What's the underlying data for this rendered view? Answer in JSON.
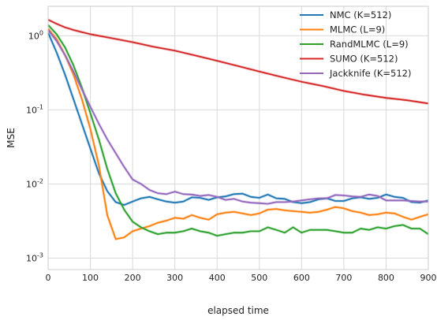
{
  "chart_data": {
    "type": "line",
    "title": "",
    "xlabel": "elapsed time",
    "ylabel": "MSE",
    "xlim": [
      0,
      900
    ],
    "ylim": [
      0.0007,
      2.5
    ],
    "yscale": "log",
    "grid": true,
    "legend_position": "top-right",
    "x_ticks": [
      0,
      100,
      200,
      300,
      400,
      500,
      600,
      700,
      800,
      900
    ],
    "x_tick_labels": [
      "0",
      "100",
      "200",
      "300",
      "400",
      "500",
      "600",
      "700",
      "800",
      "900"
    ],
    "y_ticks": [
      0.001,
      0.01,
      0.1,
      1
    ],
    "y_tick_labels": [
      {
        "base": "10",
        "exp": "-3"
      },
      {
        "base": "10",
        "exp": "-2"
      },
      {
        "base": "10",
        "exp": "-1"
      },
      {
        "base": "10",
        "exp": "0"
      }
    ],
    "series": [
      {
        "name": "NMC (K=512)",
        "color": "#1f77b4",
        "points": [
          [
            0,
            1.1
          ],
          [
            20,
            0.6
          ],
          [
            40,
            0.3
          ],
          [
            60,
            0.14
          ],
          [
            80,
            0.065
          ],
          [
            100,
            0.03
          ],
          [
            120,
            0.014
          ],
          [
            140,
            0.008
          ],
          [
            160,
            0.0057
          ],
          [
            180,
            0.0052
          ],
          [
            200,
            0.0058
          ],
          [
            220,
            0.0064
          ],
          [
            240,
            0.0067
          ],
          [
            260,
            0.0062
          ],
          [
            280,
            0.0058
          ],
          [
            300,
            0.0056
          ],
          [
            320,
            0.0058
          ],
          [
            340,
            0.0066
          ],
          [
            360,
            0.0065
          ],
          [
            380,
            0.0061
          ],
          [
            400,
            0.0066
          ],
          [
            420,
            0.0068
          ],
          [
            440,
            0.0073
          ],
          [
            460,
            0.0074
          ],
          [
            480,
            0.0067
          ],
          [
            500,
            0.0065
          ],
          [
            520,
            0.0072
          ],
          [
            540,
            0.0064
          ],
          [
            560,
            0.0063
          ],
          [
            580,
            0.0057
          ],
          [
            600,
            0.0055
          ],
          [
            620,
            0.0057
          ],
          [
            640,
            0.0062
          ],
          [
            660,
            0.0064
          ],
          [
            680,
            0.0059
          ],
          [
            700,
            0.0059
          ],
          [
            720,
            0.0064
          ],
          [
            740,
            0.0066
          ],
          [
            760,
            0.0063
          ],
          [
            780,
            0.0065
          ],
          [
            800,
            0.0072
          ],
          [
            820,
            0.0067
          ],
          [
            840,
            0.0065
          ],
          [
            860,
            0.0057
          ],
          [
            880,
            0.0056
          ],
          [
            900,
            0.006
          ]
        ]
      },
      {
        "name": "MLMC (L=9)",
        "color": "#ff7f0e",
        "points": [
          [
            0,
            1.25
          ],
          [
            20,
            0.9
          ],
          [
            40,
            0.55
          ],
          [
            60,
            0.3
          ],
          [
            80,
            0.14
          ],
          [
            100,
            0.055
          ],
          [
            120,
            0.018
          ],
          [
            140,
            0.0038
          ],
          [
            160,
            0.0018
          ],
          [
            180,
            0.0019
          ],
          [
            200,
            0.0023
          ],
          [
            220,
            0.0025
          ],
          [
            240,
            0.0027
          ],
          [
            260,
            0.003
          ],
          [
            280,
            0.0032
          ],
          [
            300,
            0.0035
          ],
          [
            320,
            0.0034
          ],
          [
            340,
            0.0038
          ],
          [
            360,
            0.0035
          ],
          [
            380,
            0.0033
          ],
          [
            400,
            0.0039
          ],
          [
            420,
            0.0041
          ],
          [
            440,
            0.0042
          ],
          [
            460,
            0.004
          ],
          [
            480,
            0.0038
          ],
          [
            500,
            0.004
          ],
          [
            520,
            0.0045
          ],
          [
            540,
            0.0046
          ],
          [
            560,
            0.0044
          ],
          [
            580,
            0.0043
          ],
          [
            600,
            0.0042
          ],
          [
            620,
            0.0041
          ],
          [
            640,
            0.0042
          ],
          [
            660,
            0.0045
          ],
          [
            680,
            0.0049
          ],
          [
            700,
            0.0047
          ],
          [
            720,
            0.0043
          ],
          [
            740,
            0.0041
          ],
          [
            760,
            0.0038
          ],
          [
            780,
            0.0039
          ],
          [
            800,
            0.0041
          ],
          [
            820,
            0.004
          ],
          [
            840,
            0.0036
          ],
          [
            860,
            0.0033
          ],
          [
            880,
            0.0036
          ],
          [
            900,
            0.0039
          ]
        ]
      },
      {
        "name": "RandMLMC (L=9)",
        "color": "#2ca02c",
        "points": [
          [
            0,
            1.4
          ],
          [
            20,
            1.05
          ],
          [
            40,
            0.7
          ],
          [
            60,
            0.4
          ],
          [
            80,
            0.2
          ],
          [
            100,
            0.09
          ],
          [
            120,
            0.04
          ],
          [
            140,
            0.016
          ],
          [
            160,
            0.0075
          ],
          [
            180,
            0.0045
          ],
          [
            200,
            0.0031
          ],
          [
            220,
            0.0026
          ],
          [
            240,
            0.0023
          ],
          [
            260,
            0.0021
          ],
          [
            280,
            0.0022
          ],
          [
            300,
            0.0022
          ],
          [
            320,
            0.0023
          ],
          [
            340,
            0.0025
          ],
          [
            360,
            0.0023
          ],
          [
            380,
            0.0022
          ],
          [
            400,
            0.002
          ],
          [
            420,
            0.0021
          ],
          [
            440,
            0.0022
          ],
          [
            460,
            0.0022
          ],
          [
            480,
            0.0023
          ],
          [
            500,
            0.0023
          ],
          [
            520,
            0.0026
          ],
          [
            540,
            0.0024
          ],
          [
            560,
            0.0022
          ],
          [
            580,
            0.0026
          ],
          [
            600,
            0.0022
          ],
          [
            620,
            0.0024
          ],
          [
            640,
            0.0024
          ],
          [
            660,
            0.0024
          ],
          [
            680,
            0.0023
          ],
          [
            700,
            0.0022
          ],
          [
            720,
            0.0022
          ],
          [
            740,
            0.0025
          ],
          [
            760,
            0.0024
          ],
          [
            780,
            0.0026
          ],
          [
            800,
            0.0025
          ],
          [
            820,
            0.0027
          ],
          [
            840,
            0.0028
          ],
          [
            860,
            0.0025
          ],
          [
            880,
            0.0025
          ],
          [
            900,
            0.0021
          ]
        ]
      },
      {
        "name": "SUMO (K=512)",
        "color": "#d62728",
        "points": [
          [
            0,
            1.65
          ],
          [
            20,
            1.45
          ],
          [
            40,
            1.3
          ],
          [
            60,
            1.2
          ],
          [
            80,
            1.12
          ],
          [
            100,
            1.05
          ],
          [
            150,
            0.93
          ],
          [
            200,
            0.82
          ],
          [
            250,
            0.71
          ],
          [
            300,
            0.63
          ],
          [
            350,
            0.54
          ],
          [
            400,
            0.46
          ],
          [
            450,
            0.39
          ],
          [
            500,
            0.33
          ],
          [
            550,
            0.28
          ],
          [
            600,
            0.24
          ],
          [
            650,
            0.21
          ],
          [
            700,
            0.18
          ],
          [
            750,
            0.16
          ],
          [
            800,
            0.145
          ],
          [
            850,
            0.135
          ],
          [
            900,
            0.122
          ]
        ]
      },
      {
        "name": "Jackknife (K=512)",
        "color": "#9467bd",
        "points": [
          [
            0,
            1.2
          ],
          [
            20,
            0.85
          ],
          [
            40,
            0.55
          ],
          [
            60,
            0.33
          ],
          [
            80,
            0.19
          ],
          [
            100,
            0.11
          ],
          [
            120,
            0.065
          ],
          [
            140,
            0.04
          ],
          [
            160,
            0.026
          ],
          [
            180,
            0.017
          ],
          [
            200,
            0.0115
          ],
          [
            220,
            0.01
          ],
          [
            240,
            0.0083
          ],
          [
            260,
            0.0075
          ],
          [
            280,
            0.0073
          ],
          [
            300,
            0.0079
          ],
          [
            320,
            0.0073
          ],
          [
            340,
            0.0072
          ],
          [
            360,
            0.0069
          ],
          [
            380,
            0.0071
          ],
          [
            400,
            0.0067
          ],
          [
            420,
            0.0061
          ],
          [
            440,
            0.0063
          ],
          [
            460,
            0.0058
          ],
          [
            480,
            0.0056
          ],
          [
            500,
            0.0055
          ],
          [
            520,
            0.0054
          ],
          [
            540,
            0.0057
          ],
          [
            560,
            0.0057
          ],
          [
            580,
            0.0058
          ],
          [
            600,
            0.006
          ],
          [
            620,
            0.0062
          ],
          [
            640,
            0.0064
          ],
          [
            660,
            0.0064
          ],
          [
            680,
            0.0071
          ],
          [
            700,
            0.007
          ],
          [
            720,
            0.0068
          ],
          [
            740,
            0.0067
          ],
          [
            760,
            0.0072
          ],
          [
            780,
            0.0069
          ],
          [
            800,
            0.006
          ],
          [
            820,
            0.006
          ],
          [
            840,
            0.006
          ],
          [
            860,
            0.0059
          ],
          [
            880,
            0.0058
          ],
          [
            900,
            0.0058
          ]
        ]
      }
    ]
  }
}
